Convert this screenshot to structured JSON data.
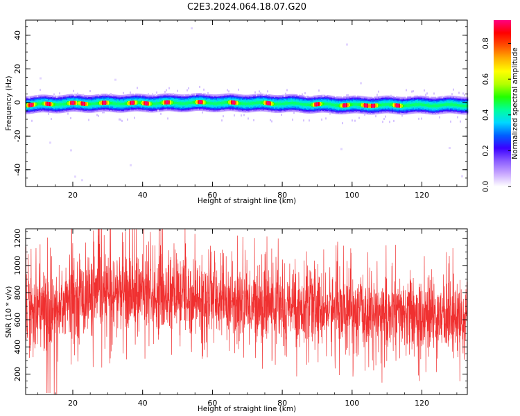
{
  "title": "C2E3.2024.064.18.07.G20",
  "chart_data": [
    {
      "type": "heatmap",
      "xlabel": "Height of straight line (km)",
      "ylabel": "Frequency (Hz)",
      "xlim": [
        6.5,
        133
      ],
      "ylim": [
        -50,
        49
      ],
      "xticks": [
        20,
        40,
        60,
        80,
        100,
        120
      ],
      "yticks": [
        -40,
        -20,
        0,
        20,
        40
      ],
      "band_center_hz": [
        [
          6.5,
          -1.2
        ],
        [
          20,
          -0.5
        ],
        [
          40,
          -0.3
        ],
        [
          57,
          0
        ],
        [
          80,
          -0.5
        ],
        [
          100,
          -1.5
        ],
        [
          120,
          -1.5
        ],
        [
          133,
          -1.5
        ]
      ],
      "band_halfwidth_hz": 4,
      "hotspots_km": [
        8,
        13,
        20,
        23,
        29,
        37,
        41,
        47,
        56.5,
        66,
        76,
        90,
        98,
        104,
        106,
        113
      ],
      "colorbar": {
        "label": "Normalized spectral amplitude",
        "range": [
          0.0,
          0.93
        ],
        "ticks": [
          "0.0",
          "0.2",
          "0.4",
          "0.6",
          "0.8"
        ],
        "tick_values": [
          0.0,
          0.2,
          0.4,
          0.6,
          0.8
        ],
        "colors": [
          "#ffffff",
          "#c9a8ff",
          "#8a5cff",
          "#3a00ff",
          "#0060ff",
          "#00d8ff",
          "#00ff9a",
          "#22ff00",
          "#b4ff00",
          "#ffff00",
          "#ffb000",
          "#ff5000",
          "#ff0000",
          "#ff0080"
        ]
      }
    },
    {
      "type": "line",
      "xlabel": "Height of straight line (km)",
      "ylabel": "SNR (10 * v/v)",
      "xlim": [
        6.5,
        133
      ],
      "ylim": [
        50,
        1270
      ],
      "xticks": [
        20,
        40,
        60,
        80,
        100,
        120
      ],
      "yticks": [
        200,
        400,
        600,
        800,
        1000,
        1200
      ],
      "color": "#f03030",
      "envelope": [
        {
          "x": 6.5,
          "mean": 700,
          "spread": 140
        },
        {
          "x": 10,
          "mean": 680,
          "spread": 160
        },
        {
          "x": 14,
          "mean": 640,
          "spread": 180
        },
        {
          "x": 18,
          "mean": 740,
          "spread": 160
        },
        {
          "x": 25,
          "mean": 780,
          "spread": 150
        },
        {
          "x": 35,
          "mean": 800,
          "spread": 150
        },
        {
          "x": 45,
          "mean": 790,
          "spread": 150
        },
        {
          "x": 55,
          "mean": 770,
          "spread": 150
        },
        {
          "x": 70,
          "mean": 720,
          "spread": 140
        },
        {
          "x": 85,
          "mean": 690,
          "spread": 140
        },
        {
          "x": 100,
          "mean": 660,
          "spread": 140
        },
        {
          "x": 115,
          "mean": 630,
          "spread": 140
        },
        {
          "x": 133,
          "mean": 620,
          "spread": 140
        }
      ]
    }
  ]
}
